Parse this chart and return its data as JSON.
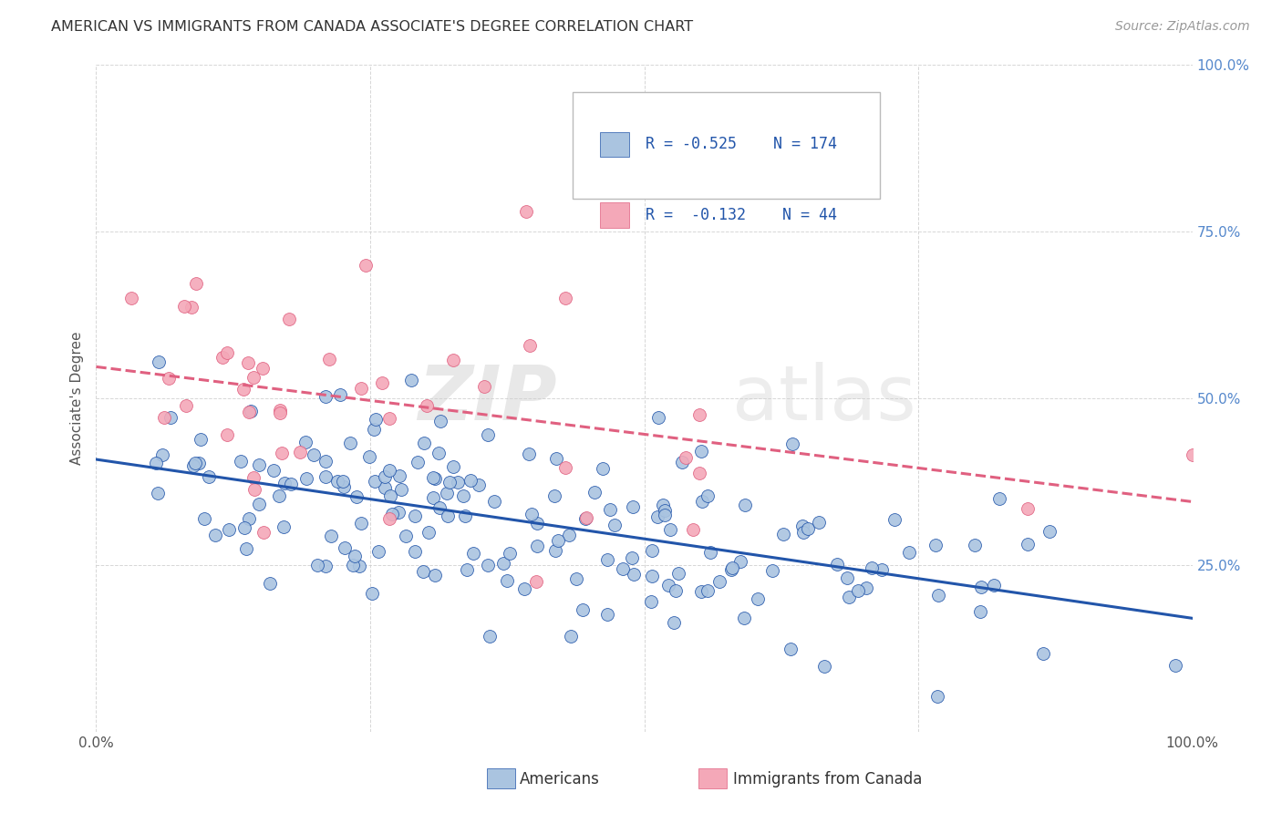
{
  "title": "AMERICAN VS IMMIGRANTS FROM CANADA ASSOCIATE'S DEGREE CORRELATION CHART",
  "source": "Source: ZipAtlas.com",
  "ylabel": "Associate's Degree",
  "watermark_zip": "ZIP",
  "watermark_atlas": "atlas",
  "blue_R": -0.525,
  "blue_N": 174,
  "pink_R": -0.132,
  "pink_N": 44,
  "blue_color": "#aac4e0",
  "pink_color": "#f4a8b8",
  "blue_line_color": "#2255aa",
  "pink_line_color": "#e06080",
  "grid_color": "#cccccc",
  "background_color": "#ffffff",
  "legend_label_blue": "Americans",
  "legend_label_pink": "Immigrants from Canada",
  "ax_text_color": "#5588cc",
  "title_color": "#333333",
  "source_color": "#999999"
}
